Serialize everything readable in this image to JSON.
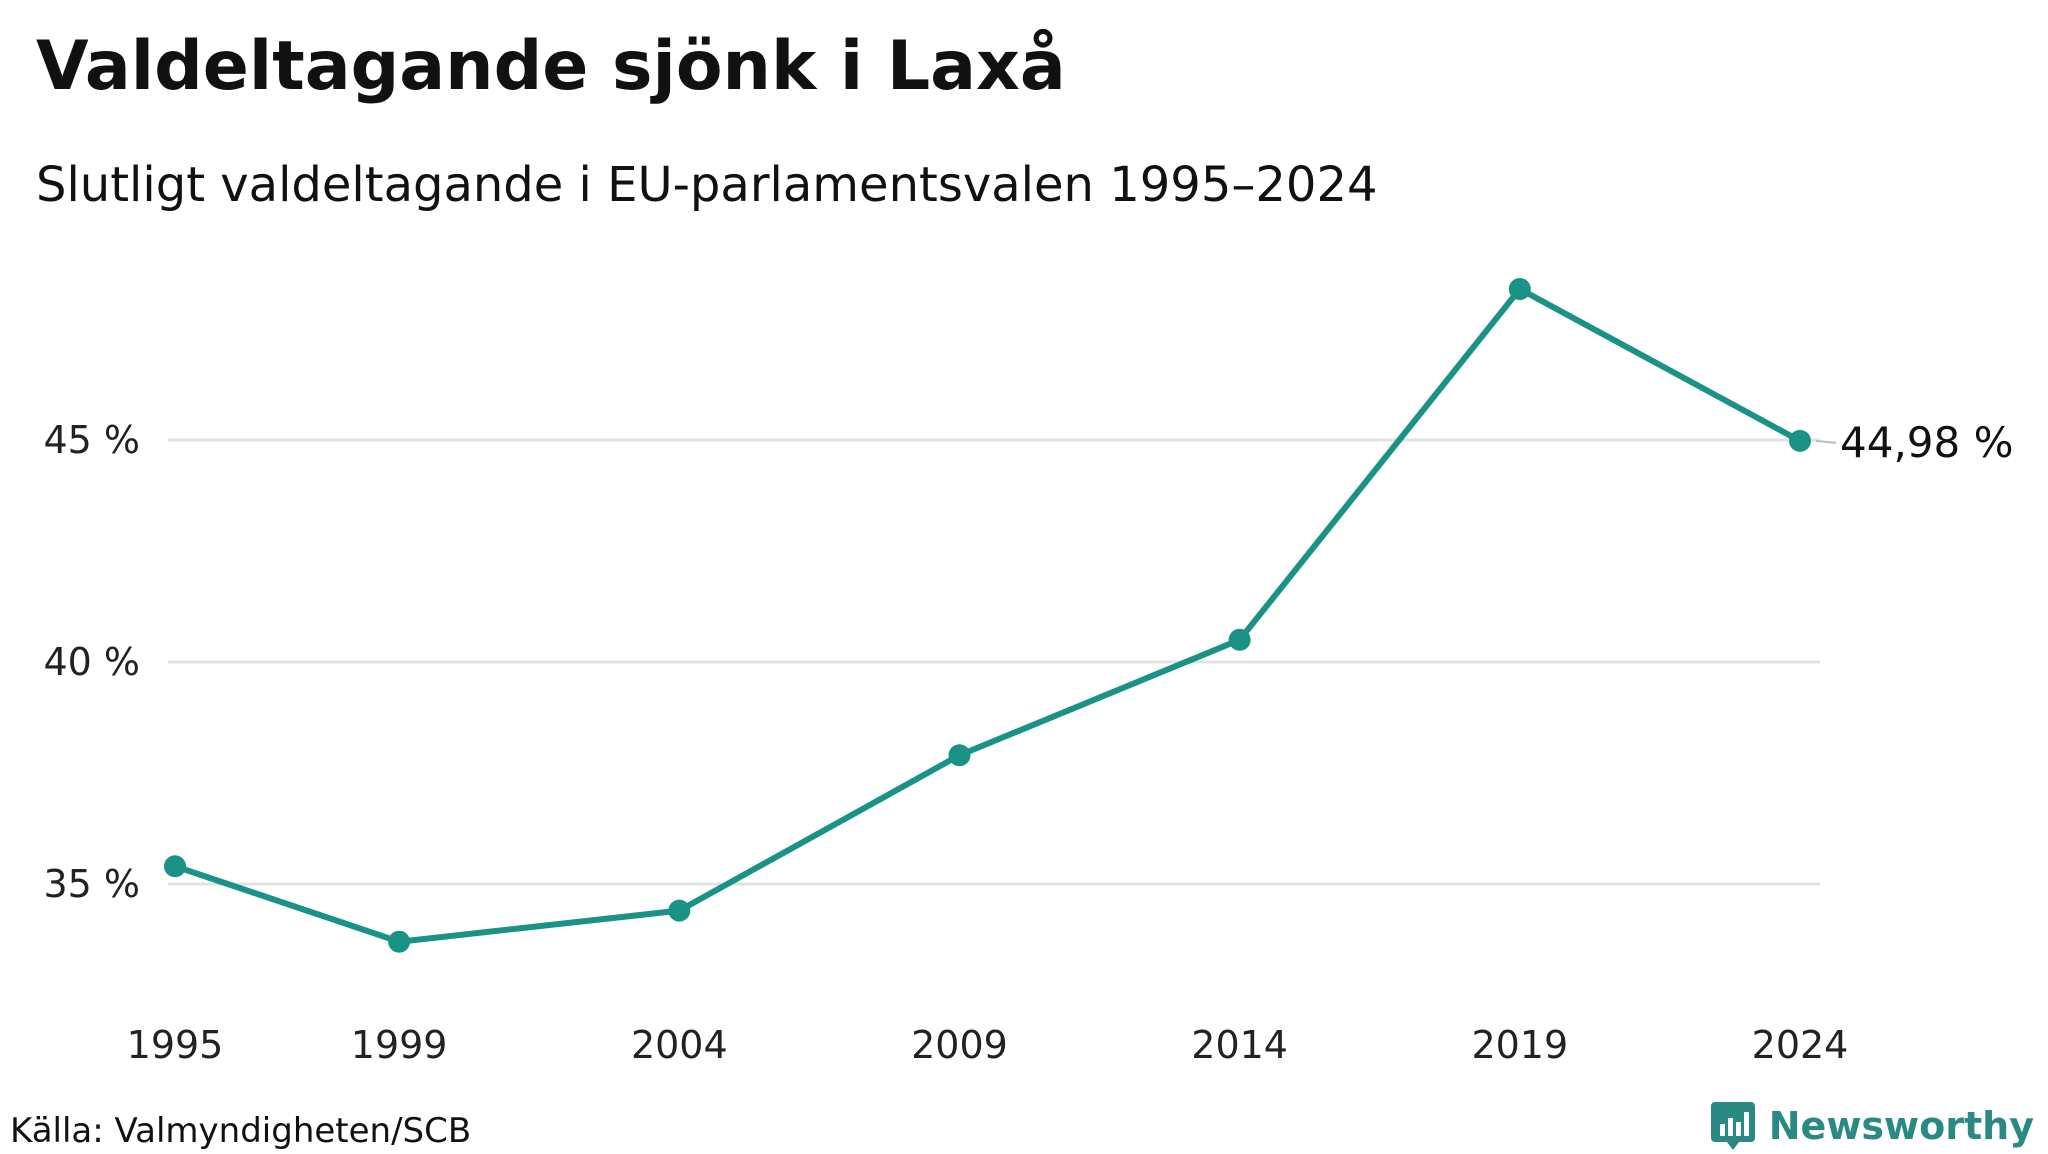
{
  "title": "Valdeltagande sjönk i Laxå",
  "subtitle": "Slutligt valdeltagande i EU-parlamentsvalen 1995–2024",
  "source": "Källa: Valmyndigheten/SCB",
  "brand": {
    "name": "Newsworthy",
    "icon": "newsworthy-logo-icon"
  },
  "colors": {
    "line": "#1a9285",
    "grid": "#e2e2e2",
    "leader": "#bbbbbb",
    "brand": "#2a8a83"
  },
  "chart_data": {
    "type": "line",
    "title": "Valdeltagande sjönk i Laxå",
    "subtitle": "Slutligt valdeltagande i EU-parlamentsvalen 1995–2024",
    "xlabel": "",
    "ylabel": "",
    "x": [
      1995,
      1999,
      2004,
      2009,
      2014,
      2019,
      2024
    ],
    "x_tick_labels": [
      "1995",
      "1999",
      "2004",
      "2009",
      "2014",
      "2019",
      "2024"
    ],
    "series": [
      {
        "values": [
          35.4,
          33.7,
          34.4,
          37.9,
          40.5,
          48.4,
          44.98
        ]
      }
    ],
    "y_ticks": [
      35,
      40,
      45
    ],
    "y_tick_labels": [
      "35 %",
      "40 %",
      "45 %"
    ],
    "ylim": [
      32.5,
      49
    ],
    "grid": "horizontal",
    "end_label": "44,98 %"
  }
}
